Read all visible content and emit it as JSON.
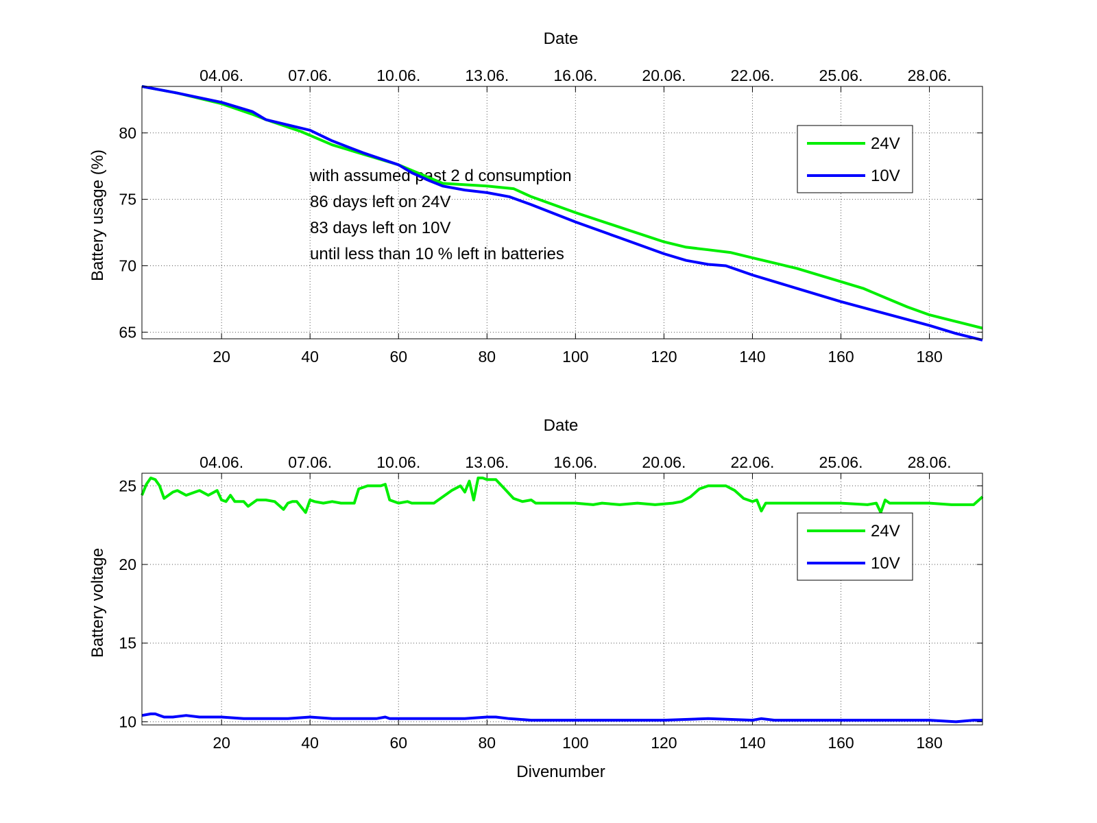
{
  "colors": {
    "series_24v": "#00ee00",
    "series_10v": "#0000ff",
    "axes": "#000000",
    "grid": "#555555",
    "background": "#ffffff"
  },
  "chart_data": [
    {
      "type": "line",
      "title": "",
      "xlabel": "",
      "top_xlabel": "Date",
      "ylabel": "Battery usage (%)",
      "xlim": [
        2,
        192
      ],
      "ylim": [
        64.5,
        83.5
      ],
      "xticks": [
        20,
        40,
        60,
        80,
        100,
        120,
        140,
        160,
        180
      ],
      "xtick_labels": [
        "20",
        "40",
        "60",
        "80",
        "100",
        "120",
        "140",
        "160",
        "180"
      ],
      "yticks": [
        65,
        70,
        75,
        80
      ],
      "ytick_labels": [
        "65",
        "70",
        "75",
        "80"
      ],
      "date_ticks": [
        20,
        40,
        60,
        80,
        100,
        120,
        140,
        160,
        180
      ],
      "date_labels": [
        "04.06.",
        "07.06.",
        "10.06.",
        "13.06.",
        "16.06.",
        "20.06.",
        "22.06.",
        "25.06.",
        "28.06."
      ],
      "grid": true,
      "legend_position": "top-right",
      "annotation": [
        "with assumed past 2 d consumption",
        "86 days left on 24V",
        "83 days left on 10V",
        "until less than 10 % left in batteries"
      ],
      "series": [
        {
          "name": "24V",
          "color": "#00ee00",
          "x": [
            2,
            10,
            20,
            27,
            30,
            38,
            45,
            52,
            60,
            65,
            70,
            80,
            86,
            90,
            100,
            110,
            120,
            125,
            130,
            135,
            140,
            150,
            160,
            165,
            170,
            175,
            180,
            186,
            192
          ],
          "y": [
            83.5,
            83.0,
            82.2,
            81.4,
            81.0,
            80.1,
            79.1,
            78.4,
            77.6,
            76.9,
            76.2,
            76.0,
            75.8,
            75.2,
            74.0,
            72.9,
            71.8,
            71.4,
            71.2,
            71.0,
            70.6,
            69.8,
            68.8,
            68.3,
            67.6,
            66.9,
            66.3,
            65.8,
            65.3
          ]
        },
        {
          "name": "10V",
          "color": "#0000ff",
          "x": [
            2,
            10,
            20,
            27,
            30,
            40,
            45,
            52,
            60,
            63,
            67,
            70,
            75,
            80,
            85,
            90,
            100,
            110,
            120,
            125,
            130,
            134,
            140,
            150,
            160,
            170,
            180,
            186,
            192
          ],
          "y": [
            83.5,
            83.0,
            82.3,
            81.6,
            81.0,
            80.2,
            79.4,
            78.5,
            77.6,
            77.0,
            76.4,
            76.0,
            75.7,
            75.5,
            75.2,
            74.6,
            73.3,
            72.1,
            70.9,
            70.4,
            70.1,
            70.0,
            69.3,
            68.3,
            67.3,
            66.4,
            65.5,
            64.9,
            64.4
          ]
        }
      ]
    },
    {
      "type": "line",
      "title": "",
      "xlabel": "Divenumber",
      "top_xlabel": "Date",
      "ylabel": "Battery voltage",
      "xlim": [
        2,
        192
      ],
      "ylim": [
        9.8,
        25.8
      ],
      "xticks": [
        20,
        40,
        60,
        80,
        100,
        120,
        140,
        160,
        180
      ],
      "xtick_labels": [
        "20",
        "40",
        "60",
        "80",
        "100",
        "120",
        "140",
        "160",
        "180"
      ],
      "yticks": [
        10,
        15,
        20,
        25
      ],
      "ytick_labels": [
        "10",
        "15",
        "20",
        "25"
      ],
      "date_ticks": [
        20,
        40,
        60,
        80,
        100,
        120,
        140,
        160,
        180
      ],
      "date_labels": [
        "04.06.",
        "07.06.",
        "10.06.",
        "13.06.",
        "16.06.",
        "20.06.",
        "22.06.",
        "25.06.",
        "28.06."
      ],
      "grid": true,
      "legend_position": "top-right",
      "series": [
        {
          "name": "24V",
          "color": "#00ee00",
          "x": [
            2,
            3,
            4,
            5,
            6,
            7,
            8,
            9,
            10,
            12,
            14,
            15,
            17,
            19,
            20,
            21,
            22,
            23,
            25,
            26,
            27,
            28,
            30,
            32,
            34,
            35,
            36,
            37,
            39,
            40,
            41,
            43,
            45,
            47,
            50,
            51,
            53,
            56,
            57,
            58,
            60,
            62,
            63,
            65,
            68,
            72,
            74,
            75,
            76,
            77,
            78,
            79,
            80,
            82,
            84,
            86,
            88,
            90,
            91,
            93,
            96,
            100,
            104,
            106,
            110,
            114,
            118,
            122,
            124,
            126,
            128,
            130,
            132,
            134,
            136,
            138,
            140,
            141,
            142,
            143,
            145,
            150,
            160,
            166,
            168,
            169,
            170,
            171,
            175,
            180,
            185,
            190,
            192
          ],
          "y": [
            24.4,
            25.1,
            25.5,
            25.4,
            25.0,
            24.2,
            24.4,
            24.6,
            24.7,
            24.4,
            24.6,
            24.7,
            24.4,
            24.7,
            24.1,
            24.0,
            24.4,
            24.0,
            24.0,
            23.7,
            23.9,
            24.1,
            24.1,
            24.0,
            23.5,
            23.9,
            24.0,
            24.0,
            23.3,
            24.1,
            24.0,
            23.9,
            24.0,
            23.9,
            23.9,
            24.8,
            25.0,
            25.0,
            25.1,
            24.1,
            23.9,
            24.0,
            23.9,
            23.9,
            23.9,
            24.7,
            25.0,
            24.6,
            25.3,
            24.1,
            25.5,
            25.5,
            25.4,
            25.4,
            24.8,
            24.2,
            24.0,
            24.1,
            23.9,
            23.9,
            23.9,
            23.9,
            23.8,
            23.9,
            23.8,
            23.9,
            23.8,
            23.9,
            24.0,
            24.3,
            24.8,
            25.0,
            25.0,
            25.0,
            24.7,
            24.2,
            24.0,
            24.1,
            23.4,
            23.9,
            23.9,
            23.9,
            23.9,
            23.8,
            23.9,
            23.3,
            24.1,
            23.9,
            23.9,
            23.9,
            23.8,
            23.8,
            24.3
          ]
        },
        {
          "name": "10V",
          "color": "#0000ff",
          "x": [
            2,
            4,
            5,
            6,
            7,
            9,
            12,
            15,
            20,
            25,
            30,
            35,
            40,
            45,
            50,
            55,
            57,
            58,
            60,
            65,
            70,
            75,
            80,
            82,
            85,
            90,
            95,
            100,
            110,
            120,
            130,
            140,
            142,
            145,
            160,
            170,
            180,
            186,
            190,
            192
          ],
          "y": [
            10.4,
            10.5,
            10.5,
            10.4,
            10.3,
            10.3,
            10.4,
            10.3,
            10.3,
            10.2,
            10.2,
            10.2,
            10.3,
            10.2,
            10.2,
            10.2,
            10.3,
            10.2,
            10.2,
            10.2,
            10.2,
            10.2,
            10.3,
            10.3,
            10.2,
            10.1,
            10.1,
            10.1,
            10.1,
            10.1,
            10.2,
            10.1,
            10.2,
            10.1,
            10.1,
            10.1,
            10.1,
            10.0,
            10.1,
            10.1
          ]
        }
      ]
    }
  ]
}
